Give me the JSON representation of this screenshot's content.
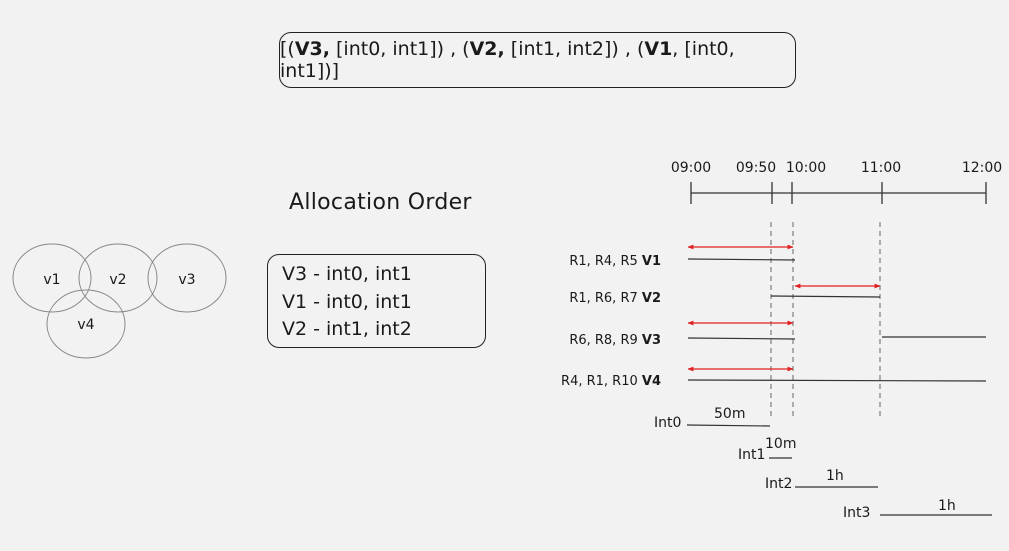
{
  "sequence": {
    "open": "[(",
    "v3": "V3,",
    "v3_iv": " [int0, int1]) , (",
    "v2": "V2,",
    "v2_iv": " [int1, int2]) , (",
    "v1": "V1",
    "v1_iv": ", [int0, int1])]"
  },
  "allocation_title": "Allocation Order",
  "allocation_order": [
    "V3 - int0, int1",
    "V1 - int0, int1",
    "V2 - int1, int2"
  ],
  "venn_labels": [
    "v1",
    "v2",
    "v3",
    "v4"
  ],
  "time_ticks": [
    "09:00",
    "09:50",
    "10:00",
    "11:00",
    "12:00"
  ],
  "rows": [
    {
      "rooms": "R1, R4, R5 ",
      "v": "V1"
    },
    {
      "rooms": "R1, R6, R7 ",
      "v": "V2"
    },
    {
      "rooms": "R6, R8, R9 ",
      "v": "V3"
    },
    {
      "rooms": "R4, R1, R10 ",
      "v": "V4"
    }
  ],
  "intervals": [
    {
      "name": "Int0",
      "duration": "50m"
    },
    {
      "name": "Int1",
      "duration": "10m"
    },
    {
      "name": "Int2",
      "duration": "1h"
    },
    {
      "name": "Int3",
      "duration": "1h"
    }
  ],
  "colors": {
    "arrow": "#e02020",
    "line": "#333333",
    "dash": "#666666"
  }
}
